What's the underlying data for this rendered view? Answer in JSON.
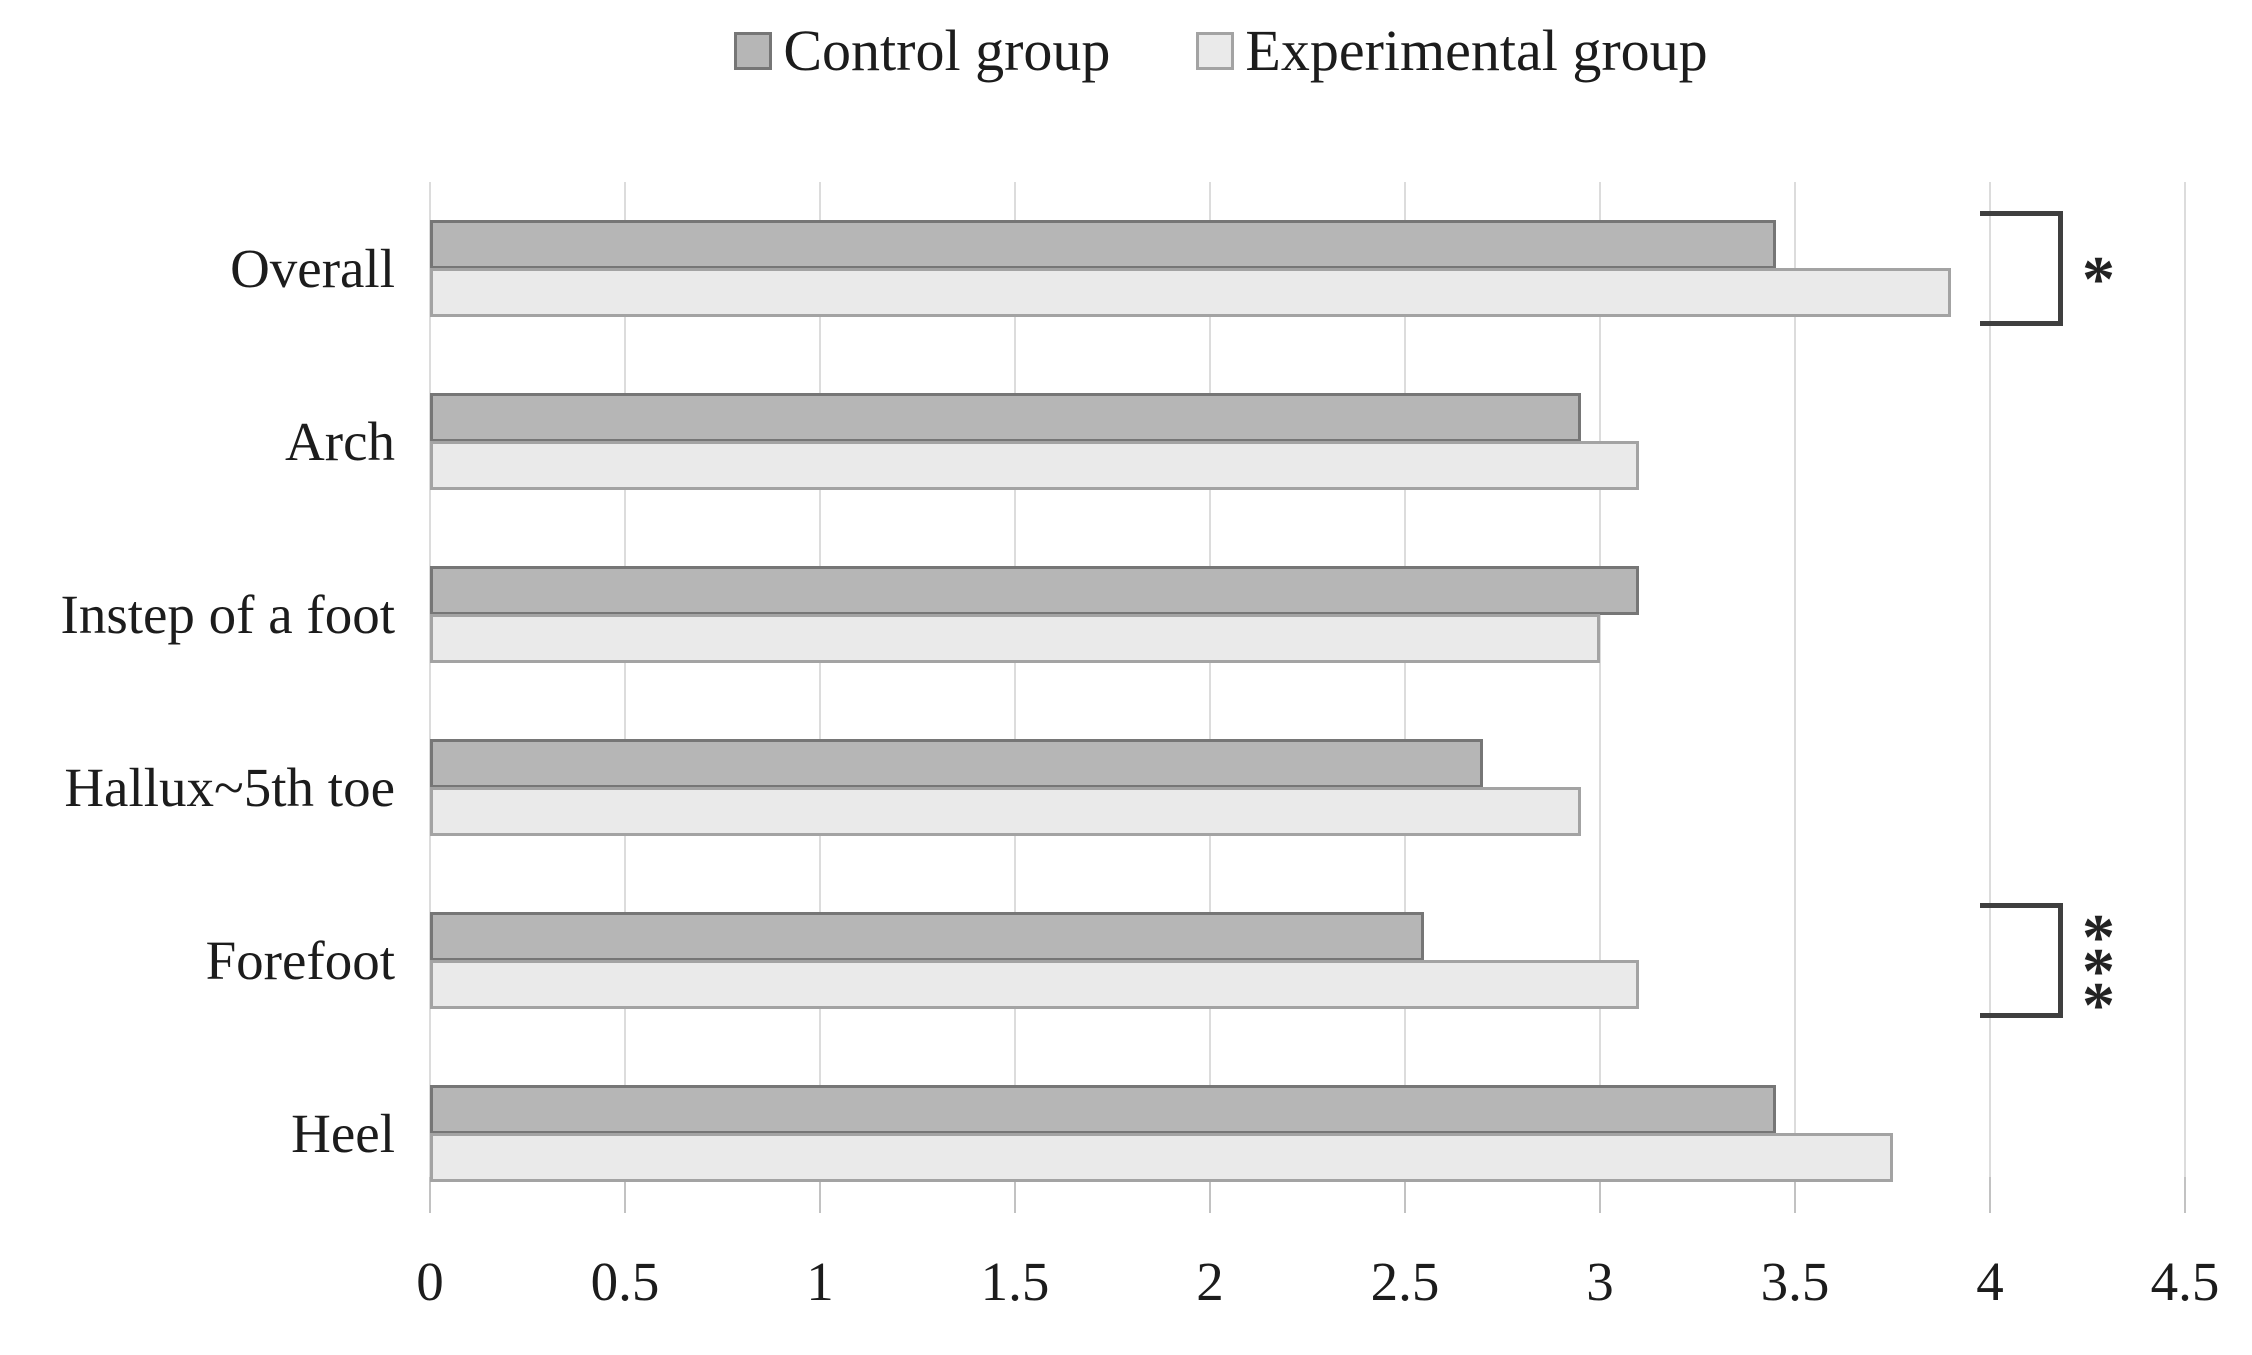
{
  "legend": {
    "items": [
      {
        "label": "Control group",
        "fill": "#b6b6b6",
        "border": "#767676"
      },
      {
        "label": "Experimental group",
        "fill": "#eaeaea",
        "border": "#a3a3a3"
      }
    ]
  },
  "chart_data": {
    "type": "bar",
    "orientation": "horizontal",
    "title": "",
    "categories": [
      "Overall",
      "Arch",
      "Instep of a foot",
      "Hallux~5th toe",
      "Forefoot",
      "Heel"
    ],
    "series": [
      {
        "name": "Control group",
        "values": [
          3.45,
          2.95,
          3.1,
          2.7,
          2.55,
          3.45
        ],
        "fill": "#b6b6b6",
        "border": "#767676"
      },
      {
        "name": "Experimental group",
        "values": [
          3.9,
          3.1,
          3.0,
          2.95,
          3.1,
          3.75
        ],
        "fill": "#eaeaea",
        "border": "#a3a3a3"
      }
    ],
    "xlim": [
      0,
      4.5
    ],
    "xticks": [
      "0",
      "0.5",
      "1",
      "1.5",
      "2",
      "2.5",
      "3",
      "3.5",
      "4",
      "4.5"
    ],
    "grid": true,
    "legend_position": "top-center",
    "annotations": [
      {
        "category": "Overall",
        "marker": "*"
      },
      {
        "category": "Forefoot",
        "marker": "***"
      }
    ]
  },
  "colors": {
    "gridline": "#dcdcdc",
    "tick": "#c2c2c2",
    "text": "#1c1c1c",
    "bracket": "#3f3f3f",
    "background": "#ffffff"
  }
}
